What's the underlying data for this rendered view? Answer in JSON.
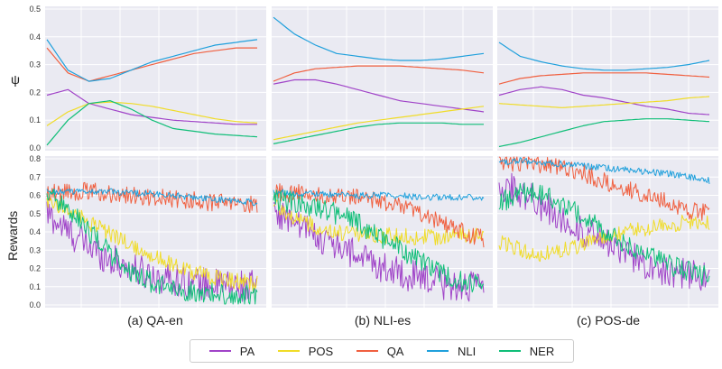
{
  "chart_data": {
    "type": "line",
    "legend": [
      {
        "name": "PA",
        "color": "#a044c8"
      },
      {
        "name": "POS",
        "color": "#f0dc28"
      },
      {
        "name": "QA",
        "color": "#f06040"
      },
      {
        "name": "NLI",
        "color": "#20a0dc"
      },
      {
        "name": "NER",
        "color": "#10be78"
      }
    ],
    "legend_position": "bottom-center",
    "grid": true,
    "psi_axis": {
      "ylabel": "ψ",
      "ylim": [
        0.0,
        0.5
      ],
      "ticks": [
        "0.0",
        "0.1",
        "0.2",
        "0.3",
        "0.4",
        "0.5"
      ]
    },
    "reward_axis": {
      "ylabel": "Rewards",
      "ylim": [
        0.0,
        0.8
      ],
      "ticks": [
        "0.0",
        "0.1",
        "0.2",
        "0.3",
        "0.4",
        "0.5",
        "0.6",
        "0.7",
        "0.8"
      ]
    },
    "x_relative": [
      0,
      0.1,
      0.2,
      0.3,
      0.4,
      0.5,
      0.6,
      0.7,
      0.8,
      0.9,
      1.0
    ],
    "panels": [
      {
        "caption": "(a) QA-en",
        "psi": [
          {
            "name": "PA",
            "values": [
              0.19,
              0.21,
              0.16,
              0.14,
              0.12,
              0.11,
              0.1,
              0.095,
              0.09,
              0.085,
              0.085
            ]
          },
          {
            "name": "POS",
            "values": [
              0.08,
              0.13,
              0.16,
              0.165,
              0.16,
              0.15,
              0.135,
              0.12,
              0.105,
              0.095,
              0.09
            ]
          },
          {
            "name": "QA",
            "values": [
              0.36,
              0.27,
              0.24,
              0.26,
              0.28,
              0.3,
              0.32,
              0.34,
              0.35,
              0.36,
              0.36
            ]
          },
          {
            "name": "NLI",
            "values": [
              0.39,
              0.28,
              0.24,
              0.25,
              0.28,
              0.31,
              0.33,
              0.35,
              0.37,
              0.38,
              0.39
            ]
          },
          {
            "name": "NER",
            "values": [
              0.01,
              0.1,
              0.16,
              0.17,
              0.14,
              0.1,
              0.07,
              0.06,
              0.05,
              0.045,
              0.04
            ]
          }
        ],
        "rewards": [
          {
            "name": "PA",
            "values": [
              0.5,
              0.4,
              0.32,
              0.25,
              0.2,
              0.16,
              0.14,
              0.12,
              0.11,
              0.1,
              0.1
            ]
          },
          {
            "name": "POS",
            "values": [
              0.58,
              0.52,
              0.45,
              0.39,
              0.33,
              0.27,
              0.22,
              0.18,
              0.15,
              0.13,
              0.12
            ]
          },
          {
            "name": "QA",
            "values": [
              0.62,
              0.62,
              0.62,
              0.61,
              0.6,
              0.59,
              0.58,
              0.57,
              0.56,
              0.55,
              0.55
            ]
          },
          {
            "name": "NLI",
            "values": [
              0.62,
              0.62,
              0.62,
              0.62,
              0.61,
              0.61,
              0.6,
              0.59,
              0.58,
              0.57,
              0.56
            ]
          },
          {
            "name": "NER",
            "values": [
              0.6,
              0.52,
              0.4,
              0.28,
              0.18,
              0.12,
              0.09,
              0.07,
              0.06,
              0.05,
              0.05
            ]
          }
        ]
      },
      {
        "caption": "(b) NLI-es",
        "psi": [
          {
            "name": "PA",
            "values": [
              0.23,
              0.245,
              0.245,
              0.23,
              0.21,
              0.19,
              0.17,
              0.16,
              0.15,
              0.14,
              0.13
            ]
          },
          {
            "name": "POS",
            "values": [
              0.03,
              0.045,
              0.06,
              0.075,
              0.09,
              0.1,
              0.11,
              0.12,
              0.13,
              0.14,
              0.15
            ]
          },
          {
            "name": "QA",
            "values": [
              0.24,
              0.27,
              0.285,
              0.29,
              0.295,
              0.295,
              0.295,
              0.29,
              0.285,
              0.28,
              0.27
            ]
          },
          {
            "name": "NLI",
            "values": [
              0.47,
              0.41,
              0.37,
              0.34,
              0.33,
              0.32,
              0.315,
              0.315,
              0.32,
              0.33,
              0.34
            ]
          },
          {
            "name": "NER",
            "values": [
              0.015,
              0.03,
              0.045,
              0.06,
              0.075,
              0.085,
              0.09,
              0.09,
              0.09,
              0.085,
              0.085
            ]
          }
        ],
        "rewards": [
          {
            "name": "PA",
            "values": [
              0.52,
              0.45,
              0.38,
              0.32,
              0.27,
              0.22,
              0.18,
              0.14,
              0.12,
              0.1,
              0.09
            ]
          },
          {
            "name": "POS",
            "values": [
              0.55,
              0.48,
              0.43,
              0.4,
              0.39,
              0.38,
              0.38,
              0.37,
              0.37,
              0.38,
              0.38
            ]
          },
          {
            "name": "QA",
            "values": [
              0.62,
              0.61,
              0.61,
              0.6,
              0.59,
              0.57,
              0.54,
              0.5,
              0.45,
              0.4,
              0.36
            ]
          },
          {
            "name": "NLI",
            "values": [
              0.62,
              0.61,
              0.61,
              0.6,
              0.6,
              0.6,
              0.6,
              0.59,
              0.59,
              0.59,
              0.59
            ]
          },
          {
            "name": "NER",
            "values": [
              0.58,
              0.56,
              0.54,
              0.5,
              0.45,
              0.38,
              0.31,
              0.24,
              0.17,
              0.12,
              0.1
            ]
          }
        ]
      },
      {
        "caption": "(c) POS-de",
        "psi": [
          {
            "name": "PA",
            "values": [
              0.19,
              0.21,
              0.22,
              0.21,
              0.19,
              0.18,
              0.165,
              0.15,
              0.14,
              0.125,
              0.12
            ]
          },
          {
            "name": "POS",
            "values": [
              0.16,
              0.155,
              0.15,
              0.145,
              0.15,
              0.155,
              0.16,
              0.165,
              0.17,
              0.18,
              0.185
            ]
          },
          {
            "name": "QA",
            "values": [
              0.23,
              0.25,
              0.26,
              0.265,
              0.27,
              0.27,
              0.27,
              0.27,
              0.265,
              0.26,
              0.255
            ]
          },
          {
            "name": "NLI",
            "values": [
              0.38,
              0.33,
              0.31,
              0.295,
              0.285,
              0.28,
              0.28,
              0.285,
              0.29,
              0.3,
              0.315
            ]
          },
          {
            "name": "NER",
            "values": [
              0.005,
              0.02,
              0.04,
              0.06,
              0.08,
              0.095,
              0.1,
              0.105,
              0.105,
              0.1,
              0.095
            ]
          }
        ],
        "rewards": [
          {
            "name": "PA",
            "values": [
              0.66,
              0.62,
              0.55,
              0.47,
              0.4,
              0.34,
              0.28,
              0.23,
              0.19,
              0.16,
              0.14
            ]
          },
          {
            "name": "POS",
            "values": [
              0.35,
              0.3,
              0.28,
              0.3,
              0.33,
              0.37,
              0.4,
              0.42,
              0.44,
              0.45,
              0.45
            ]
          },
          {
            "name": "QA",
            "values": [
              0.78,
              0.78,
              0.77,
              0.75,
              0.72,
              0.68,
              0.64,
              0.6,
              0.56,
              0.52,
              0.5
            ]
          },
          {
            "name": "NLI",
            "values": [
              0.78,
              0.79,
              0.78,
              0.77,
              0.76,
              0.75,
              0.74,
              0.73,
              0.72,
              0.7,
              0.68
            ]
          },
          {
            "name": "NER",
            "values": [
              0.55,
              0.62,
              0.6,
              0.55,
              0.48,
              0.41,
              0.34,
              0.28,
              0.22,
              0.18,
              0.16
            ]
          }
        ]
      }
    ]
  }
}
